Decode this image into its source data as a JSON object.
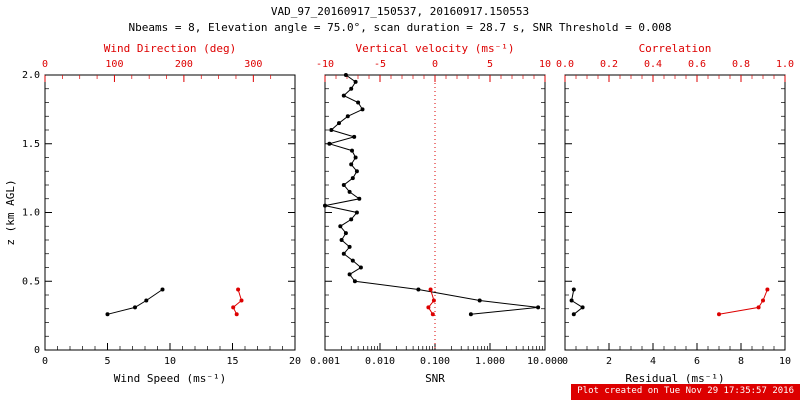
{
  "header": {
    "title": "VAD_97_20160917_150537, 20160917.150553",
    "subtitle": "Nbeams = 8, Elevation angle = 75.0°, scan duration = 28.7 s, SNR Threshold = 0.008"
  },
  "footer": {
    "stamp": "Plot created on Tue Nov 29 17:35:57 2016"
  },
  "colors": {
    "axis_black": "#000000",
    "accent_red": "#dd0000",
    "background": "#ffffff"
  },
  "chart_data": [
    {
      "type": "line",
      "name": "wind-speed-direction",
      "x_bottom": {
        "min": 0,
        "max": 20,
        "ticks": [
          0,
          5,
          10,
          15,
          20
        ],
        "tick_labels": [
          "0",
          "5",
          "10",
          "15",
          "20"
        ],
        "minor_divs": 5,
        "label": "Wind Speed (ms⁻¹)"
      },
      "x_top": {
        "min": 0,
        "max": 360,
        "ticks": [
          0,
          100,
          200,
          300
        ],
        "tick_labels": [
          "0",
          "100",
          "200",
          "300"
        ],
        "minor_divs": 4,
        "label": "Wind Direction (deg)"
      },
      "y": {
        "min": 0,
        "max": 2,
        "ticks": [
          0,
          0.5,
          1,
          1.5,
          2
        ],
        "tick_labels": [
          "0",
          "0.5",
          "1.0",
          "1.5",
          "2.0"
        ],
        "minor_divs": 5,
        "show_labels": true,
        "label": "z (km AGL)"
      },
      "series": [
        {
          "name": "wind_speed",
          "axis": "bottom",
          "color": "black",
          "z": [
            0.26,
            0.31,
            0.36,
            0.44
          ],
          "values": [
            5.0,
            7.2,
            8.1,
            9.4
          ]
        },
        {
          "name": "wind_direction",
          "axis": "top",
          "color": "red",
          "z": [
            0.26,
            0.31,
            0.36,
            0.44
          ],
          "values": [
            276,
            271,
            283,
            278
          ]
        }
      ]
    },
    {
      "type": "line",
      "name": "snr-vertical-velocity",
      "x_bottom": {
        "min": 0.001,
        "max": 10,
        "scale": "log",
        "ticks": [
          0.001,
          0.01,
          0.1,
          1,
          10
        ],
        "tick_labels": [
          "0.001",
          "0.010",
          "0.100",
          "1.000",
          "10.000"
        ],
        "label": "SNR"
      },
      "x_top": {
        "min": -10,
        "max": 10,
        "ticks": [
          -10,
          -5,
          0,
          5,
          10
        ],
        "tick_labels": [
          "-10",
          "-5",
          "0",
          "5",
          "10"
        ],
        "minor_divs": 5,
        "label": "Vertical velocity (ms⁻¹)"
      },
      "y": {
        "min": 0,
        "max": 2,
        "ticks": [
          0,
          0.5,
          1,
          1.5,
          2
        ],
        "tick_labels": [
          "0",
          "0.5",
          "1.0",
          "1.5",
          "2.0"
        ],
        "minor_divs": 5,
        "show_labels": false,
        "label": ""
      },
      "refline": {
        "axis": "top",
        "value": 0,
        "color": "red",
        "style": "dotted"
      },
      "series": [
        {
          "name": "snr",
          "axis": "bottom",
          "color": "black",
          "z": [
            0.26,
            0.31,
            0.36,
            0.44,
            0.5,
            0.55,
            0.6,
            0.65,
            0.7,
            0.75,
            0.8,
            0.85,
            0.9,
            0.95,
            1.0,
            1.05,
            1.1,
            1.15,
            1.2,
            1.25,
            1.3,
            1.35,
            1.4,
            1.45,
            1.5,
            1.55,
            1.6,
            1.65,
            1.7,
            1.75,
            1.8,
            1.85,
            1.9,
            1.95,
            2.0
          ],
          "values": [
            0.45,
            7.5,
            0.65,
            0.05,
            0.0035,
            0.0028,
            0.0045,
            0.0032,
            0.0022,
            0.0028,
            0.002,
            0.0024,
            0.0019,
            0.003,
            0.0038,
            0.001,
            0.0042,
            0.0028,
            0.0022,
            0.0032,
            0.0038,
            0.003,
            0.0036,
            0.0031,
            0.0012,
            0.0034,
            0.0013,
            0.0018,
            0.0026,
            0.0048,
            0.004,
            0.0022,
            0.003,
            0.0036,
            0.0024
          ]
        },
        {
          "name": "vertical_velocity",
          "axis": "top",
          "color": "red",
          "z": [
            0.26,
            0.31,
            0.36,
            0.44
          ],
          "values": [
            -0.2,
            -0.6,
            -0.1,
            -0.4
          ]
        }
      ]
    },
    {
      "type": "line",
      "name": "residual-correlation",
      "x_bottom": {
        "min": 0,
        "max": 10,
        "ticks": [
          0,
          2,
          4,
          6,
          8,
          10
        ],
        "tick_labels": [
          "0",
          "2",
          "4",
          "6",
          "8",
          "10"
        ],
        "minor_divs": 4,
        "label": "Residual (ms⁻¹)"
      },
      "x_top": {
        "min": 0,
        "max": 1,
        "ticks": [
          0,
          0.2,
          0.4,
          0.6,
          0.8,
          1.0
        ],
        "tick_labels": [
          "0.0",
          "0.2",
          "0.4",
          "0.6",
          "0.8",
          "1.0"
        ],
        "minor_divs": 4,
        "label": "Correlation"
      },
      "y": {
        "min": 0,
        "max": 2,
        "ticks": [
          0,
          0.5,
          1,
          1.5,
          2
        ],
        "tick_labels": [
          "0",
          "0.5",
          "1.0",
          "1.5",
          "2.0"
        ],
        "minor_divs": 5,
        "show_labels": false,
        "label": ""
      },
      "series": [
        {
          "name": "residual",
          "axis": "bottom",
          "color": "black",
          "z": [
            0.26,
            0.31,
            0.36,
            0.44
          ],
          "values": [
            0.4,
            0.8,
            0.3,
            0.4
          ]
        },
        {
          "name": "correlation",
          "axis": "top",
          "color": "red",
          "z": [
            0.26,
            0.31,
            0.36,
            0.44
          ],
          "values": [
            0.7,
            0.88,
            0.9,
            0.92
          ]
        }
      ]
    }
  ]
}
